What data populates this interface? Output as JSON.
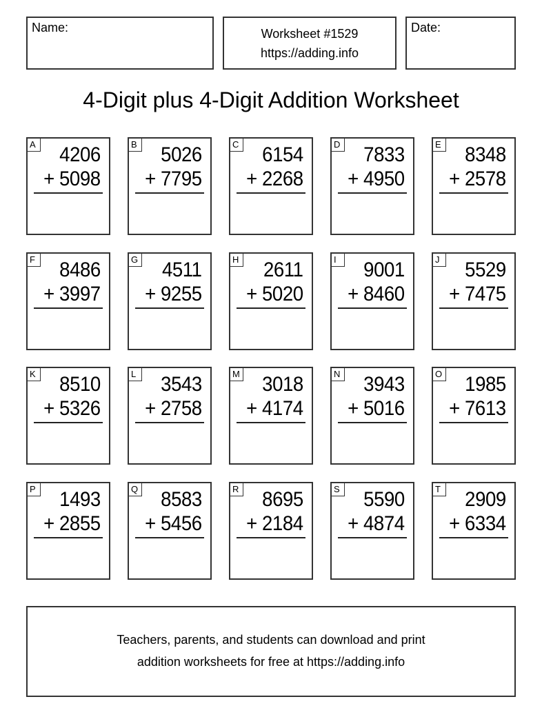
{
  "header": {
    "name_label": "Name:",
    "worksheet_number": "Worksheet #1529",
    "worksheet_url": "https://adding.info",
    "date_label": "Date:"
  },
  "title": "4-Digit plus 4-Digit Addition Worksheet",
  "problems": [
    {
      "label": "A",
      "top": "4206",
      "bottom": "+ 5098"
    },
    {
      "label": "B",
      "top": "5026",
      "bottom": "+ 7795"
    },
    {
      "label": "C",
      "top": "6154",
      "bottom": "+ 2268"
    },
    {
      "label": "D",
      "top": "7833",
      "bottom": "+ 4950"
    },
    {
      "label": "E",
      "top": "8348",
      "bottom": "+ 2578"
    },
    {
      "label": "F",
      "top": "8486",
      "bottom": "+ 3997"
    },
    {
      "label": "G",
      "top": "4511",
      "bottom": "+ 9255"
    },
    {
      "label": "H",
      "top": "2611",
      "bottom": "+ 5020"
    },
    {
      "label": "I",
      "top": "9001",
      "bottom": "+ 8460"
    },
    {
      "label": "J",
      "top": "5529",
      "bottom": "+ 7475"
    },
    {
      "label": "K",
      "top": "8510",
      "bottom": "+ 5326"
    },
    {
      "label": "L",
      "top": "3543",
      "bottom": "+ 2758"
    },
    {
      "label": "M",
      "top": "3018",
      "bottom": "+ 4174"
    },
    {
      "label": "N",
      "top": "3943",
      "bottom": "+ 5016"
    },
    {
      "label": "O",
      "top": "1985",
      "bottom": "+ 7613"
    },
    {
      "label": "P",
      "top": "1493",
      "bottom": "+ 2855"
    },
    {
      "label": "Q",
      "top": "8583",
      "bottom": "+ 5456"
    },
    {
      "label": "R",
      "top": "8695",
      "bottom": "+ 2184"
    },
    {
      "label": "S",
      "top": "5590",
      "bottom": "+ 4874"
    },
    {
      "label": "T",
      "top": "2909",
      "bottom": "+ 6334"
    }
  ],
  "footer": {
    "line1": "Teachers, parents, and students can download and print",
    "line2": "addition worksheets for free at https://adding.info"
  }
}
